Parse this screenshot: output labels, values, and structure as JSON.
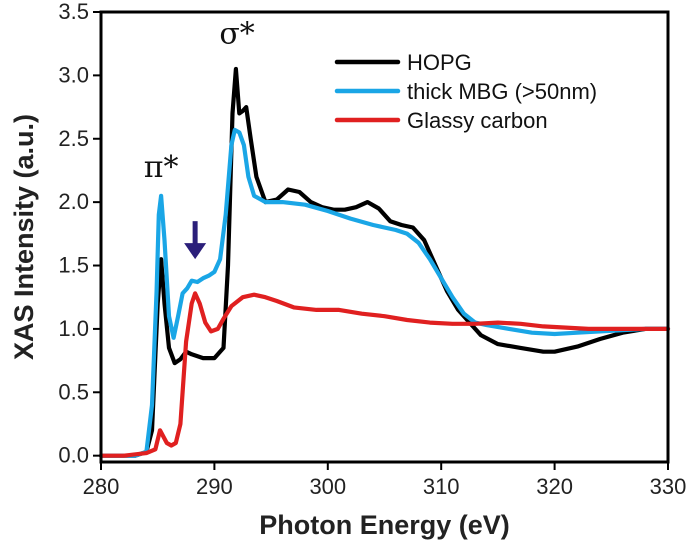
{
  "chart_data": {
    "type": "line",
    "xlabel": "Photon Energy (eV)",
    "ylabel": "XAS Intensity (a.u.)",
    "xlim": [
      280,
      330
    ],
    "ylim": [
      -0.05,
      3.5
    ],
    "xticks": [
      280,
      290,
      300,
      310,
      320,
      330
    ],
    "yticks": [
      0.0,
      0.5,
      1.0,
      1.5,
      2.0,
      2.5,
      3.0,
      3.5
    ],
    "ytick_labels": [
      "0.0",
      "0.5",
      "1.0",
      "1.5",
      "2.0",
      "2.5",
      "3.0",
      "3.5"
    ],
    "grid": false,
    "legend_position": "top-right",
    "annotations": [
      {
        "text": "π*",
        "x": 285.3,
        "y": 2.2
      },
      {
        "text": "σ*",
        "x": 292.0,
        "y": 3.25
      }
    ],
    "arrow": {
      "x": 288.3,
      "y_top": 1.85,
      "y_bottom": 1.55,
      "color": "#2b1f7a"
    },
    "series": [
      {
        "name": "HOPG",
        "color": "#000000",
        "points": [
          [
            280,
            0.0
          ],
          [
            283,
            0.0
          ],
          [
            284,
            0.03
          ],
          [
            284.5,
            0.2
          ],
          [
            285,
            1.2
          ],
          [
            285.3,
            1.55
          ],
          [
            285.6,
            1.2
          ],
          [
            286,
            0.85
          ],
          [
            286.5,
            0.73
          ],
          [
            287,
            0.76
          ],
          [
            287.5,
            0.82
          ],
          [
            288,
            0.8
          ],
          [
            289,
            0.77
          ],
          [
            290,
            0.77
          ],
          [
            290.8,
            0.85
          ],
          [
            291.2,
            1.5
          ],
          [
            291.6,
            2.7
          ],
          [
            291.9,
            3.05
          ],
          [
            292.2,
            2.7
          ],
          [
            292.5,
            2.72
          ],
          [
            292.8,
            2.75
          ],
          [
            293.2,
            2.5
          ],
          [
            293.7,
            2.2
          ],
          [
            294.5,
            2.0
          ],
          [
            295.5,
            2.02
          ],
          [
            296.5,
            2.1
          ],
          [
            297.5,
            2.08
          ],
          [
            298.5,
            2.0
          ],
          [
            299.5,
            1.96
          ],
          [
            300.5,
            1.94
          ],
          [
            301.5,
            1.94
          ],
          [
            302.5,
            1.96
          ],
          [
            303.5,
            2.0
          ],
          [
            304.5,
            1.95
          ],
          [
            305.5,
            1.85
          ],
          [
            306.5,
            1.82
          ],
          [
            307.5,
            1.8
          ],
          [
            308.5,
            1.7
          ],
          [
            309.5,
            1.5
          ],
          [
            310.5,
            1.3
          ],
          [
            311.5,
            1.15
          ],
          [
            312.5,
            1.05
          ],
          [
            313.5,
            0.95
          ],
          [
            315,
            0.88
          ],
          [
            317,
            0.85
          ],
          [
            319,
            0.82
          ],
          [
            320,
            0.82
          ],
          [
            322,
            0.86
          ],
          [
            324,
            0.92
          ],
          [
            326,
            0.97
          ],
          [
            328,
            1.0
          ],
          [
            330,
            1.0
          ]
        ]
      },
      {
        "name": "thick MBG (>50nm)",
        "color": "#1aa6e6",
        "points": [
          [
            280,
            0.0
          ],
          [
            283,
            0.0
          ],
          [
            284,
            0.03
          ],
          [
            284.5,
            0.4
          ],
          [
            284.9,
            1.3
          ],
          [
            285.1,
            1.9
          ],
          [
            285.3,
            2.05
          ],
          [
            285.6,
            1.7
          ],
          [
            286,
            1.1
          ],
          [
            286.4,
            0.93
          ],
          [
            286.8,
            1.1
          ],
          [
            287.2,
            1.28
          ],
          [
            287.6,
            1.32
          ],
          [
            288,
            1.38
          ],
          [
            288.5,
            1.37
          ],
          [
            289,
            1.4
          ],
          [
            289.5,
            1.42
          ],
          [
            290,
            1.45
          ],
          [
            290.5,
            1.55
          ],
          [
            291,
            1.9
          ],
          [
            291.5,
            2.45
          ],
          [
            291.8,
            2.57
          ],
          [
            292.2,
            2.55
          ],
          [
            292.6,
            2.45
          ],
          [
            293,
            2.2
          ],
          [
            293.5,
            2.05
          ],
          [
            294.5,
            2.0
          ],
          [
            296,
            2.0
          ],
          [
            298,
            1.98
          ],
          [
            300,
            1.93
          ],
          [
            302,
            1.87
          ],
          [
            304,
            1.82
          ],
          [
            306,
            1.78
          ],
          [
            307,
            1.75
          ],
          [
            308,
            1.68
          ],
          [
            309,
            1.55
          ],
          [
            310,
            1.4
          ],
          [
            311,
            1.25
          ],
          [
            312,
            1.12
          ],
          [
            313,
            1.05
          ],
          [
            314,
            1.03
          ],
          [
            316,
            1.0
          ],
          [
            318,
            0.97
          ],
          [
            320,
            0.96
          ],
          [
            322,
            0.97
          ],
          [
            324,
            0.98
          ],
          [
            326,
            0.99
          ],
          [
            328,
            1.0
          ],
          [
            330,
            1.0
          ]
        ]
      },
      {
        "name": "Glassy carbon",
        "color": "#e02020",
        "points": [
          [
            280,
            0.0
          ],
          [
            282,
            0.0
          ],
          [
            284,
            0.02
          ],
          [
            284.8,
            0.05
          ],
          [
            285.2,
            0.2
          ],
          [
            285.5,
            0.15
          ],
          [
            285.8,
            0.1
          ],
          [
            286.2,
            0.08
          ],
          [
            286.6,
            0.1
          ],
          [
            287,
            0.25
          ],
          [
            287.5,
            0.9
          ],
          [
            288,
            1.2
          ],
          [
            288.3,
            1.28
          ],
          [
            288.7,
            1.2
          ],
          [
            289.2,
            1.05
          ],
          [
            289.7,
            0.98
          ],
          [
            290.3,
            1.0
          ],
          [
            290.8,
            1.08
          ],
          [
            291.5,
            1.18
          ],
          [
            292.5,
            1.25
          ],
          [
            293.5,
            1.27
          ],
          [
            294.5,
            1.25
          ],
          [
            295.5,
            1.22
          ],
          [
            297,
            1.17
          ],
          [
            299,
            1.15
          ],
          [
            301,
            1.15
          ],
          [
            303,
            1.12
          ],
          [
            305,
            1.1
          ],
          [
            307,
            1.07
          ],
          [
            309,
            1.05
          ],
          [
            311,
            1.04
          ],
          [
            313,
            1.04
          ],
          [
            315,
            1.05
          ],
          [
            317,
            1.04
          ],
          [
            319,
            1.02
          ],
          [
            321,
            1.01
          ],
          [
            323,
            1.0
          ],
          [
            325,
            1.0
          ],
          [
            327,
            1.0
          ],
          [
            330,
            1.0
          ]
        ]
      }
    ]
  }
}
